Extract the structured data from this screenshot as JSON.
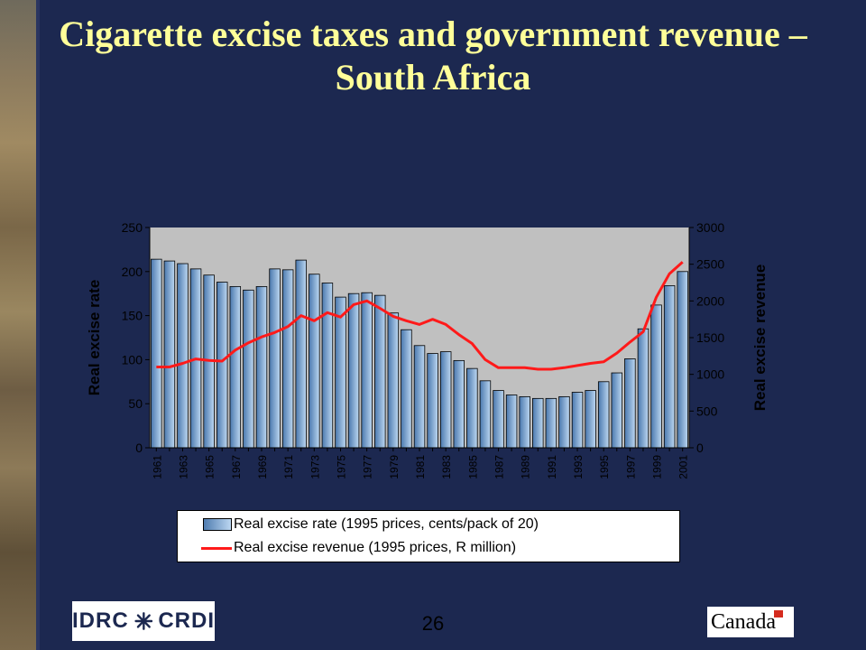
{
  "title": "Cigarette excise taxes and government revenue – South Africa",
  "page_number": "26",
  "footer": {
    "logo_left": {
      "part1": "IDRC",
      "part2": "CRDI"
    },
    "logo_right": "Canada"
  },
  "colors": {
    "background": "#1c2850",
    "title": "#ffff99",
    "plot_area": "#c0c0c0",
    "bar": "#7ea7d6",
    "line": "#ff1a1a"
  },
  "chart_data": {
    "type": "bar+line",
    "categories": [
      1961,
      1962,
      1963,
      1964,
      1965,
      1966,
      1967,
      1968,
      1969,
      1970,
      1971,
      1972,
      1973,
      1974,
      1975,
      1976,
      1977,
      1978,
      1979,
      1980,
      1981,
      1982,
      1983,
      1984,
      1985,
      1986,
      1987,
      1988,
      1989,
      1990,
      1991,
      1992,
      1993,
      1994,
      1995,
      1996,
      1997,
      1998,
      1999,
      2000,
      2001
    ],
    "x_tick_labels": [
      "1961",
      "1963",
      "1965",
      "1967",
      "1969",
      "1971",
      "1973",
      "1975",
      "1977",
      "1979",
      "1981",
      "1983",
      "1985",
      "1987",
      "1989",
      "1991",
      "1993",
      "1995",
      "1997",
      "1999",
      "2001"
    ],
    "series": [
      {
        "name": "Real excise rate (1995 prices, cents/pack of 20)",
        "type": "bar",
        "axis": "left",
        "values": [
          214,
          212,
          209,
          203,
          196,
          188,
          183,
          179,
          183,
          203,
          202,
          213,
          197,
          187,
          171,
          175,
          176,
          173,
          153,
          134,
          116,
          107,
          109,
          99,
          90,
          76,
          65,
          60,
          58,
          56,
          56,
          58,
          63,
          65,
          75,
          85,
          101,
          135,
          162,
          184,
          200
        ]
      },
      {
        "name": "Real excise revenue (1995 prices, R million)",
        "type": "line",
        "axis": "right",
        "values": [
          1100,
          1100,
          1150,
          1210,
          1190,
          1180,
          1330,
          1430,
          1510,
          1570,
          1650,
          1800,
          1730,
          1840,
          1780,
          1950,
          2000,
          1900,
          1790,
          1730,
          1680,
          1750,
          1680,
          1540,
          1420,
          1200,
          1090,
          1090,
          1090,
          1070,
          1070,
          1090,
          1120,
          1150,
          1170,
          1290,
          1440,
          1580,
          2050,
          2370,
          2530
        ]
      }
    ],
    "ylabel_left": "Real excise rate",
    "ylabel_right": "Real excise revenue",
    "ylim_left": [
      0,
      250
    ],
    "yticks_left": [
      0,
      50,
      100,
      150,
      200,
      250
    ],
    "ylim_right": [
      0,
      3000
    ],
    "yticks_right": [
      0,
      500,
      1000,
      1500,
      2000,
      2500,
      3000
    ],
    "grid": false,
    "legend_position": "bottom"
  }
}
